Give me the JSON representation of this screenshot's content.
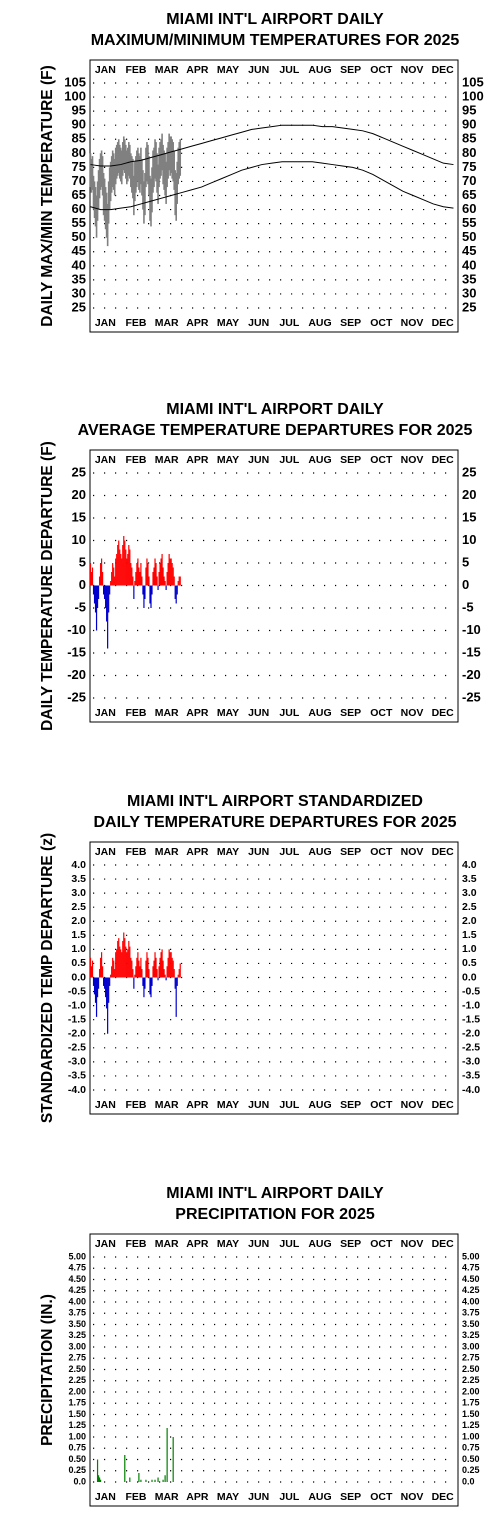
{
  "chart_data": [
    {
      "type": "range",
      "title": [
        "MIAMI INT'L AIRPORT DAILY",
        "MAXIMUM/MINIMUM TEMPERATURES FOR 2025"
      ],
      "y_label": "DAILY MAX/MIN TEMPERATURE (F)",
      "categories": [
        "JAN",
        "FEB",
        "MAR",
        "APR",
        "MAY",
        "JUN",
        "JUL",
        "AUG",
        "SEP",
        "OCT",
        "NOV",
        "DEC"
      ],
      "xlim": [
        0,
        365
      ],
      "ylim": [
        25,
        105
      ],
      "yticks": [
        25,
        30,
        35,
        40,
        45,
        50,
        55,
        60,
        65,
        70,
        75,
        80,
        85,
        90,
        95,
        100,
        105
      ],
      "grid": true,
      "color": "#808080",
      "normal_color": "#000000",
      "x": [
        1,
        2,
        3,
        4,
        5,
        6,
        7,
        8,
        9,
        10,
        11,
        12,
        13,
        14,
        15,
        16,
        17,
        18,
        19,
        20,
        21,
        22,
        23,
        24,
        25,
        26,
        27,
        28,
        29,
        30,
        31,
        32,
        33,
        34,
        35,
        36,
        37,
        38,
        39,
        40,
        41,
        42,
        43,
        44,
        45,
        46,
        47,
        48,
        49,
        50,
        51,
        52,
        53,
        54,
        55,
        56,
        57,
        58,
        59,
        60,
        61,
        62,
        63,
        64,
        65,
        66,
        67,
        68,
        69,
        70,
        71,
        72,
        73,
        74,
        75,
        76,
        77,
        78,
        79,
        80,
        81,
        82,
        83,
        84,
        85,
        86,
        87,
        88,
        89,
        90
      ],
      "max": [
        80,
        78,
        79,
        72,
        70,
        68,
        65,
        70,
        74,
        78,
        80,
        81,
        79,
        73,
        71,
        68,
        66,
        62,
        70,
        75,
        77,
        79,
        81,
        80,
        78,
        82,
        83,
        84,
        85,
        83,
        82,
        81,
        84,
        86,
        85,
        83,
        81,
        82,
        84,
        83,
        80,
        79,
        78,
        72,
        77,
        79,
        81,
        82,
        80,
        79,
        82,
        78,
        74,
        70,
        73,
        82,
        84,
        83,
        79,
        72,
        71,
        75,
        81,
        82,
        85,
        84,
        80,
        76,
        82,
        84,
        85,
        87,
        83,
        81,
        80,
        77,
        82,
        84,
        87,
        86,
        86,
        85,
        84,
        81,
        74,
        73,
        77,
        82,
        84,
        85
      ],
      "min": [
        68,
        66,
        67,
        60,
        57,
        54,
        50,
        56,
        60,
        64,
        67,
        68,
        65,
        58,
        56,
        53,
        50,
        47,
        55,
        60,
        63,
        66,
        68,
        67,
        65,
        69,
        71,
        72,
        73,
        71,
        70,
        69,
        72,
        74,
        73,
        71,
        69,
        70,
        72,
        71,
        68,
        66,
        64,
        58,
        63,
        66,
        68,
        70,
        67,
        66,
        69,
        65,
        60,
        55,
        58,
        68,
        70,
        69,
        65,
        56,
        54,
        59,
        66,
        68,
        71,
        70,
        66,
        62,
        68,
        71,
        72,
        74,
        69,
        67,
        65,
        62,
        68,
        71,
        74,
        72,
        73,
        71,
        70,
        67,
        58,
        56,
        62,
        69,
        71,
        72
      ],
      "normal_x": [
        1,
        11,
        21,
        31,
        41,
        51,
        61,
        71,
        81,
        91,
        101,
        111,
        121,
        131,
        141,
        151,
        161,
        171,
        181,
        191,
        201,
        211,
        221,
        231,
        241,
        251,
        261,
        271,
        281,
        291,
        301,
        311,
        321,
        331,
        341,
        351,
        361
      ],
      "normal_max": [
        76,
        75.5,
        75.5,
        76,
        77,
        77.5,
        78.5,
        79.5,
        80.5,
        81.5,
        82.5,
        83.5,
        84.5,
        85.5,
        86.5,
        87.5,
        88.5,
        89,
        89.5,
        90,
        90,
        90,
        90,
        89.5,
        89.5,
        89,
        88.5,
        88,
        87,
        85.5,
        84,
        82.5,
        81,
        79.5,
        78,
        76.5,
        76
      ],
      "normal_min": [
        61,
        60,
        60,
        60.5,
        61,
        62,
        63,
        64,
        65,
        66,
        67,
        68,
        69.5,
        71,
        72.5,
        74,
        75,
        76,
        76.5,
        77,
        77,
        77,
        77,
        76.5,
        76,
        75.5,
        75,
        74,
        72.5,
        70.5,
        68.5,
        66.5,
        65,
        63.5,
        62,
        61,
        60.5
      ]
    },
    {
      "type": "bar",
      "title": [
        "MIAMI INT'L AIRPORT DAILY",
        "AVERAGE TEMPERATURE DEPARTURES FOR 2025"
      ],
      "y_label": "DAILY TEMPERATURE DEPARTURE (F)",
      "categories": [
        "JAN",
        "FEB",
        "MAR",
        "APR",
        "MAY",
        "JUN",
        "JUL",
        "AUG",
        "SEP",
        "OCT",
        "NOV",
        "DEC"
      ],
      "xlim": [
        0,
        365
      ],
      "ylim": [
        -25,
        25
      ],
      "yticks": [
        -25,
        -20,
        -15,
        -10,
        -5,
        0,
        5,
        10,
        15,
        20,
        25
      ],
      "grid": true,
      "positive_color": "#ff0000",
      "negative_color": "#0000cc",
      "x": [
        1,
        2,
        3,
        4,
        5,
        6,
        7,
        8,
        9,
        10,
        11,
        12,
        13,
        14,
        15,
        16,
        17,
        18,
        19,
        20,
        21,
        22,
        23,
        24,
        25,
        26,
        27,
        28,
        29,
        30,
        31,
        32,
        33,
        34,
        35,
        36,
        37,
        38,
        39,
        40,
        41,
        42,
        43,
        44,
        45,
        46,
        47,
        48,
        49,
        50,
        51,
        52,
        53,
        54,
        55,
        56,
        57,
        58,
        59,
        60,
        61,
        62,
        63,
        64,
        65,
        66,
        67,
        68,
        69,
        70,
        71,
        72,
        73,
        74,
        75,
        76,
        77,
        78,
        79,
        80,
        81,
        82,
        83,
        84,
        85,
        86,
        87,
        88,
        89,
        90
      ],
      "values": [
        5,
        3,
        4,
        -2,
        -4,
        -6,
        -10,
        -5,
        -3,
        2,
        5,
        6,
        3,
        -2,
        -3,
        -5,
        -8,
        -14,
        -6,
        -2,
        1,
        3,
        5,
        4,
        2,
        6,
        7,
        9,
        10,
        8,
        7,
        6,
        9,
        11,
        10,
        8,
        6,
        7,
        9,
        8,
        5,
        4,
        2,
        -3,
        1,
        3,
        5,
        6,
        4,
        3,
        5,
        2,
        -2,
        -5,
        -3,
        4,
        6,
        5,
        2,
        -4,
        -5,
        -2,
        3,
        4,
        6,
        5,
        2,
        -1,
        3,
        5,
        6,
        7,
        4,
        2,
        1,
        -1,
        3,
        5,
        7,
        6,
        6,
        5,
        4,
        2,
        -3,
        -4,
        -2,
        1,
        2,
        2
      ]
    },
    {
      "type": "bar",
      "title": [
        "MIAMI INT'L AIRPORT STANDARDIZED",
        "DAILY TEMPERATURE DEPARTURES FOR 2025"
      ],
      "y_label": "STANDARDIZED TEMP DEPARTURE (z)",
      "categories": [
        "JAN",
        "FEB",
        "MAR",
        "APR",
        "MAY",
        "JUN",
        "JUL",
        "AUG",
        "SEP",
        "OCT",
        "NOV",
        "DEC"
      ],
      "xlim": [
        0,
        365
      ],
      "ylim": [
        -4,
        4
      ],
      "yticks": [
        {
          "value": -4,
          "label": "-4.0"
        },
        -3.5,
        {
          "value": -3,
          "label": "-3.0"
        },
        -2.5,
        {
          "value": -2,
          "label": "-2.0"
        },
        -1.5,
        {
          "value": -1,
          "label": "-1.0"
        },
        -0.5,
        {
          "value": 0,
          "label": "0.0"
        },
        0.5,
        {
          "value": 1,
          "label": "1.0"
        },
        1.5,
        {
          "value": 2,
          "label": "2.0"
        },
        2.5,
        {
          "value": 3,
          "label": "3.0"
        },
        3.5,
        {
          "value": 4,
          "label": "4.0"
        }
      ],
      "grid": true,
      "positive_color": "#ff0000",
      "negative_color": "#0000cc",
      "x": [
        1,
        2,
        3,
        4,
        5,
        6,
        7,
        8,
        9,
        10,
        11,
        12,
        13,
        14,
        15,
        16,
        17,
        18,
        19,
        20,
        21,
        22,
        23,
        24,
        25,
        26,
        27,
        28,
        29,
        30,
        31,
        32,
        33,
        34,
        35,
        36,
        37,
        38,
        39,
        40,
        41,
        42,
        43,
        44,
        45,
        46,
        47,
        48,
        49,
        50,
        51,
        52,
        53,
        54,
        55,
        56,
        57,
        58,
        59,
        60,
        61,
        62,
        63,
        64,
        65,
        66,
        67,
        68,
        69,
        70,
        71,
        72,
        73,
        74,
        75,
        76,
        77,
        78,
        79,
        80,
        81,
        82,
        83,
        84,
        85,
        86,
        87,
        88,
        89,
        90
      ],
      "values": [
        0.7,
        0.4,
        0.6,
        -0.3,
        -0.6,
        -0.9,
        -1.4,
        -0.7,
        -0.4,
        0.3,
        0.7,
        0.9,
        0.4,
        -0.3,
        -0.4,
        -0.7,
        -1.1,
        -2.0,
        -0.9,
        -0.3,
        0.1,
        0.4,
        0.7,
        0.6,
        0.3,
        0.9,
        1.0,
        1.3,
        1.4,
        1.1,
        1.0,
        0.9,
        1.3,
        1.6,
        1.4,
        1.1,
        0.9,
        1.0,
        1.3,
        1.1,
        0.7,
        0.6,
        0.3,
        -0.4,
        0.1,
        0.4,
        0.7,
        0.9,
        0.6,
        0.4,
        0.7,
        0.3,
        -0.3,
        -0.7,
        -0.4,
        0.6,
        0.9,
        0.7,
        0.3,
        -0.6,
        -0.7,
        -0.3,
        0.4,
        0.6,
        0.9,
        0.7,
        0.3,
        -0.1,
        0.4,
        0.7,
        0.9,
        1.0,
        0.6,
        0.3,
        0.1,
        -0.1,
        0.4,
        0.7,
        1.0,
        0.9,
        0.9,
        0.7,
        0.6,
        0.3,
        -0.4,
        -1.4,
        -0.3,
        0.1,
        0.3,
        0.5
      ]
    },
    {
      "type": "bar",
      "title": [
        "MIAMI INT'L AIRPORT DAILY",
        "PRECIPITATION FOR 2025"
      ],
      "y_label": "PRECIPITATION (IN.)",
      "categories": [
        "JAN",
        "FEB",
        "MAR",
        "APR",
        "MAY",
        "JUN",
        "JUL",
        "AUG",
        "SEP",
        "OCT",
        "NOV",
        "DEC"
      ],
      "xlim": [
        0,
        365
      ],
      "ylim": [
        0,
        5
      ],
      "yticks": [
        {
          "value": 0,
          "label": "0.0"
        },
        0.25,
        {
          "value": 0.5,
          "label": "0.50"
        },
        0.75,
        {
          "value": 1,
          "label": "1.00"
        },
        1.25,
        {
          "value": 1.5,
          "label": "1.50"
        },
        1.75,
        {
          "value": 2,
          "label": "2.00"
        },
        2.25,
        {
          "value": 2.5,
          "label": "2.50"
        },
        2.75,
        {
          "value": 3,
          "label": "3.00"
        },
        3.25,
        {
          "value": 3.5,
          "label": "3.50"
        },
        3.75,
        {
          "value": 4,
          "label": "4.00"
        },
        4.25,
        {
          "value": 4.5,
          "label": "4.50"
        },
        4.75,
        {
          "value": 5,
          "label": "5.00"
        }
      ],
      "grid": true,
      "positive_color": "#008000",
      "negative_color": "#008000",
      "x": [
        8,
        9,
        10,
        11,
        35,
        40,
        49,
        51,
        56,
        62,
        65,
        68,
        73,
        75,
        77,
        83
      ],
      "values": [
        0.5,
        0.15,
        0.1,
        0.05,
        0.6,
        0.1,
        0.2,
        0.05,
        0.05,
        0.05,
        0.05,
        0.1,
        0.05,
        0.15,
        1.2,
        1.0
      ]
    }
  ]
}
